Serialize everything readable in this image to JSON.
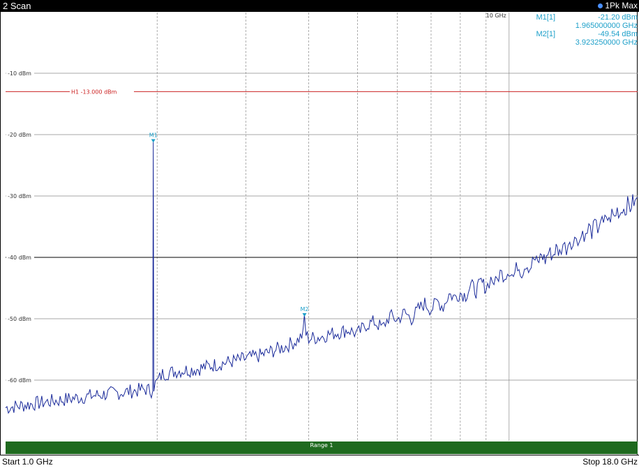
{
  "window": {
    "title": "2 Scan",
    "detector_label": "1Pk Max"
  },
  "freq_marker_label": "10 GHz",
  "markers": [
    {
      "name": "M1[1]",
      "level": "-21.20 dBm",
      "freq": "1.965000000 GHz",
      "plot_label": "M1"
    },
    {
      "name": "M2[1]",
      "level": "-49.54 dBm",
      "freq": "3.923250000 GHz",
      "plot_label": "M2"
    }
  ],
  "limit_line": {
    "label": "H1 -13.000 dBm"
  },
  "range_bar": {
    "label": "Range 1"
  },
  "footer": {
    "start": "Start 1.0 GHz",
    "stop": "Stop 18.0 GHz"
  },
  "colors": {
    "trace": "#1a2a9a",
    "limit": "#cc2222",
    "marker": "#1c9fc9",
    "range_bar": "#1f6a1f"
  },
  "chart_data": {
    "type": "line",
    "y_ticks": [
      "-10 dBm",
      "-20 dBm",
      "-30 dBm",
      "-40 dBm",
      "-50 dBm",
      "-60 dBm"
    ],
    "ylim": [
      -67,
      0
    ],
    "xlim": [
      1.0,
      18.0
    ],
    "grid": true,
    "limit": -13.0,
    "series": [
      {
        "x": [
          1.0,
          1.15,
          1.3,
          1.5,
          1.7,
          1.9,
          1.96,
          1.965,
          1.97,
          2.05,
          2.2,
          2.4,
          2.6,
          2.8,
          3.0,
          3.2,
          3.4,
          3.6,
          3.8,
          3.9,
          3.923,
          3.95,
          4.0,
          4.2,
          4.4,
          4.6,
          4.8,
          5.0,
          5.2,
          5.4,
          5.6,
          5.8,
          6.0,
          6.2,
          6.4,
          6.6,
          6.8,
          7.0,
          7.2,
          7.4,
          7.6,
          7.8,
          8.0,
          8.2,
          8.4,
          8.6,
          8.8,
          9.0,
          9.2,
          9.4,
          9.6,
          9.8,
          10.0,
          10.2,
          10.4,
          10.6,
          10.8,
          11.0,
          11.2,
          11.4,
          11.6,
          11.8,
          12.0,
          12.2,
          12.4,
          12.6,
          12.8,
          13.0,
          13.2,
          13.4,
          13.6,
          13.8,
          14.0,
          14.2,
          14.4,
          14.6,
          14.8,
          15.0,
          15.2,
          15.4,
          15.6,
          15.8,
          16.0,
          16.2,
          16.4,
          16.6,
          16.8,
          17.0,
          17.2,
          17.4,
          17.6,
          17.8,
          18.0
        ],
        "values": [
          -64.5,
          -63.8,
          -63.2,
          -62.5,
          -62.0,
          -61.5,
          -61.8,
          -21.2,
          -61.0,
          -59.0,
          -58.5,
          -58.2,
          -57.5,
          -57.0,
          -56.5,
          -56.0,
          -55.2,
          -54.5,
          -53.5,
          -52.5,
          -49.5,
          -52.5,
          -53.2,
          -53.0,
          -52.5,
          -52.2,
          -51.8,
          -52.5,
          -51.0,
          -50.5,
          -51.5,
          -49.5,
          -50.2,
          -49.0,
          -50.0,
          -48.5,
          -47.5,
          -48.5,
          -47.2,
          -48.0,
          -46.0,
          -46.5,
          -45.8,
          -46.2,
          -44.5,
          -45.5,
          -44.0,
          -45.0,
          -43.5,
          -44.2,
          -42.5,
          -43.0,
          -42.0,
          -43.2,
          -41.2,
          -42.5,
          -41.0,
          -41.8,
          -40.2,
          -41.0,
          -39.5,
          -40.5,
          -39.0,
          -39.8,
          -38.5,
          -39.3,
          -37.8,
          -38.6,
          -37.0,
          -38.0,
          -36.5,
          -37.4,
          -35.8,
          -36.8,
          -35.0,
          -36.0,
          -34.5,
          -35.4,
          -33.8,
          -34.8,
          -33.2,
          -34.2,
          -32.8,
          -33.5,
          -32.2,
          -33.0,
          -31.8,
          -32.5,
          -31.2,
          -32.0,
          -30.8,
          -31.2,
          -30.2
        ]
      }
    ]
  }
}
